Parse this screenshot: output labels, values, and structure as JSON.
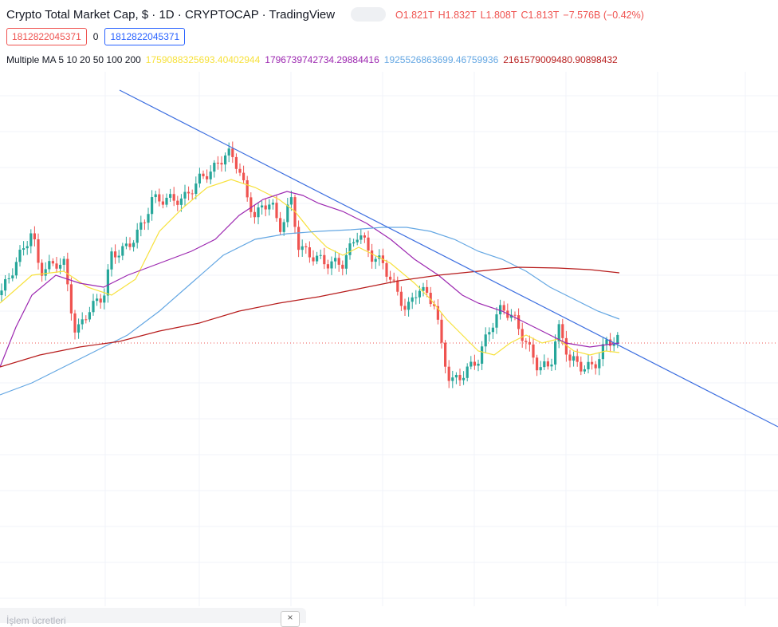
{
  "header": {
    "title": "Crypto Total Market Cap, $ · 1D · CRYPTOCAP · TradingView",
    "ohlc": {
      "open": "O1.821T",
      "high": "H1.832T",
      "low": "L1.808T",
      "close": "C1.813T",
      "change": "−7.576B (−0.42%)"
    }
  },
  "price_tags": [
    "1812822045371",
    "0",
    "1812822045371"
  ],
  "indicator": {
    "name": "Multiple MA 5 10 20 50 100 200",
    "values": [
      "1759088325693.40402944",
      "1796739742734.29884416",
      "1925526863699.46759936",
      "2161579009480.90898432"
    ]
  },
  "bottom_panel": {
    "label": "İşlem ücretleri",
    "close": "×"
  }
}
